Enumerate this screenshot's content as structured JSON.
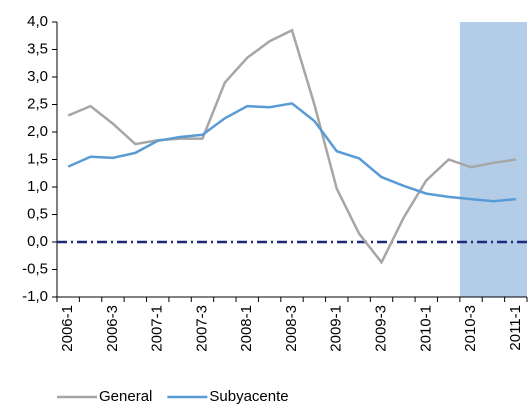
{
  "chart_data": {
    "type": "line",
    "categories": [
      "2006-1",
      null,
      "2006-3",
      null,
      "2007-1",
      null,
      "2007-3",
      null,
      "2008-1",
      null,
      "2008-3",
      null,
      "2009-1",
      null,
      "2009-3",
      null,
      "2010-1",
      null,
      "2010-3",
      null,
      "2011-1"
    ],
    "series": [
      {
        "name": "General",
        "color": "#a6a6a6",
        "values": [
          2.3,
          2.47,
          2.15,
          1.78,
          1.85,
          1.88,
          1.88,
          2.9,
          3.35,
          3.65,
          3.85,
          2.5,
          0.97,
          0.15,
          -0.37,
          0.45,
          1.12,
          1.5,
          1.36,
          1.44,
          1.5
        ]
      },
      {
        "name": "Subyacente",
        "color": "#5b9bd5",
        "values": [
          1.37,
          1.55,
          1.53,
          1.62,
          1.84,
          1.91,
          1.95,
          2.25,
          2.47,
          2.45,
          2.52,
          2.2,
          1.65,
          1.52,
          1.18,
          1.02,
          0.88,
          0.82,
          0.78,
          0.74,
          0.78
        ]
      }
    ],
    "ylim": [
      -1,
      4
    ],
    "yticks": [
      {
        "value": -1,
        "label": "-1,0"
      },
      {
        "value": -0.5,
        "label": "-0,5"
      },
      {
        "value": 0,
        "label": "0,0"
      },
      {
        "value": 0.5,
        "label": "0,5"
      },
      {
        "value": 1,
        "label": "1,0"
      },
      {
        "value": 1.5,
        "label": "1,5"
      },
      {
        "value": 2,
        "label": "2,0"
      },
      {
        "value": 2.5,
        "label": "2,5"
      },
      {
        "value": 3,
        "label": "3,0"
      },
      {
        "value": 3.5,
        "label": "3,5"
      },
      {
        "value": 4,
        "label": "4,0"
      }
    ],
    "reference_line": {
      "value": 0,
      "color": "#1f2a7a"
    },
    "shade_from": "2010-3",
    "shade_color": "#b3cde8",
    "legend": "bottom"
  }
}
